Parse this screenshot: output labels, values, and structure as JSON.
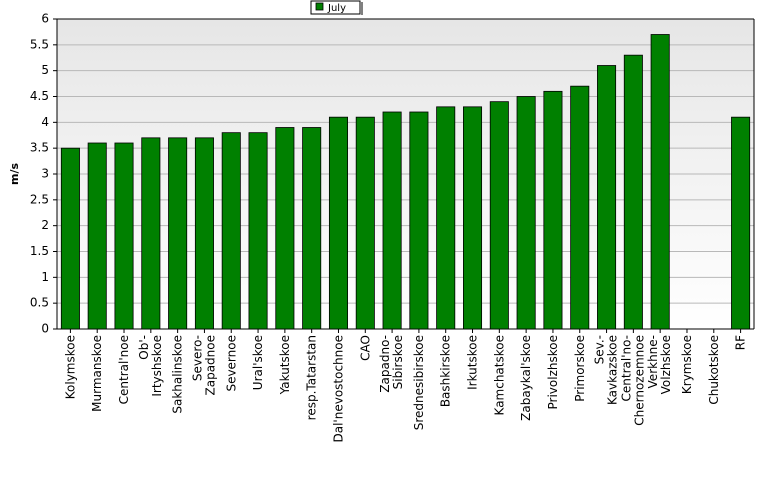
{
  "chart_data": {
    "type": "bar",
    "y_label": "m/s",
    "categories": [
      "Kolymskoe",
      "Murmanskoe",
      "Central'noe",
      "Ob'-Irtyshskoe",
      "Sakhalinskoe",
      "Severo-Zapadnoe",
      "Severnoe",
      "Ural'skoe",
      "Yakutskoe",
      "resp.Tatarstan",
      "Dal'nevostochnoe",
      "CAO",
      "Zapadno-Sibirskoe",
      "Srednesibirskoe",
      "Bashkirskoe",
      "Irkutskoe",
      "Kamchatskoe",
      "Zabaykal'skoe",
      "Privolzhskoe",
      "Primorskoe",
      "Sev.-Kavkazskoe",
      "Central'no-Chernozemnoe",
      "Verkhne-Volzhskoe",
      "Krymskoe",
      "Chukotskoe",
      "RF"
    ],
    "series": [
      {
        "name": "July",
        "color": "#008000",
        "values": [
          3.5,
          3.6,
          3.6,
          3.7,
          3.7,
          3.7,
          3.8,
          3.8,
          3.9,
          3.9,
          4.1,
          4.1,
          4.2,
          4.2,
          4.3,
          4.3,
          4.4,
          4.5,
          4.6,
          4.7,
          5.1,
          5.3,
          5.7,
          null,
          null,
          4.1
        ]
      }
    ],
    "ylim": [
      0,
      6
    ],
    "yticks": [
      0,
      0.5,
      1,
      1.5,
      2,
      2.5,
      3,
      3.5,
      4,
      4.5,
      5,
      5.5,
      6
    ],
    "grid": true,
    "legend": "top"
  }
}
